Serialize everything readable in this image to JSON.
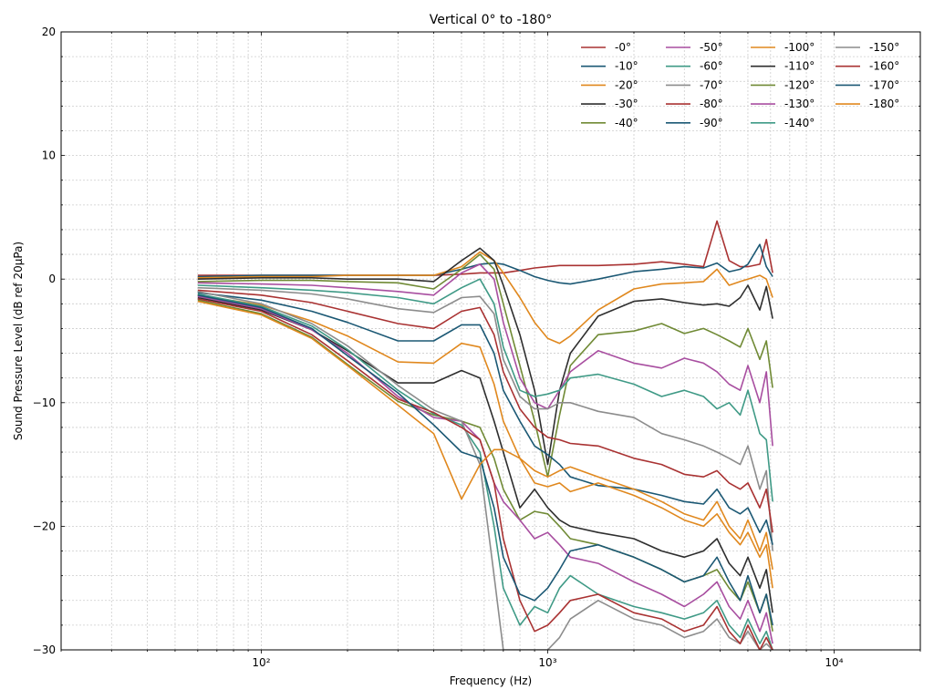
{
  "chart_data": {
    "type": "line",
    "title": "Vertical 0° to -180°",
    "xlabel": "Frequency (Hz)",
    "ylabel": "Sound Pressure Level (dB ref 20µPa)",
    "xscale": "log",
    "xlim": [
      20,
      20000
    ],
    "ylim": [
      -30,
      20
    ],
    "x_ticks": [
      {
        "value": 100,
        "label": "10²"
      },
      {
        "value": 1000,
        "label": "10³"
      },
      {
        "value": 10000,
        "label": "10⁴"
      }
    ],
    "y_ticks": [
      -30,
      -20,
      -10,
      0,
      10,
      20
    ],
    "grid": true,
    "legend_position": "top-right",
    "legend_columns": 4,
    "colors": [
      "#A93232",
      "#1B5874",
      "#E0881E",
      "#2E2E2E",
      "#708A35",
      "#A84EA0",
      "#3F9A86",
      "#8C8C8C"
    ],
    "x": [
      60,
      100,
      150,
      200,
      300,
      400,
      500,
      580,
      650,
      700,
      800,
      900,
      1000,
      1100,
      1200,
      1500,
      2000,
      2500,
      3000,
      3500,
      3900,
      4300,
      4700,
      5000,
      5500,
      5800,
      6100
    ],
    "series": [
      {
        "name": "-0°",
        "values": [
          0.3,
          0.3,
          0.3,
          0.3,
          0.3,
          0.3,
          0.4,
          0.5,
          0.5,
          0.5,
          0.7,
          0.9,
          1.0,
          1.1,
          1.1,
          1.1,
          1.2,
          1.4,
          1.2,
          1.0,
          4.7,
          1.5,
          1.0,
          1.0,
          1.2,
          3.2,
          0.5
        ]
      },
      {
        "name": "-10°",
        "values": [
          0.2,
          0.3,
          0.3,
          0.3,
          0.3,
          0.3,
          0.8,
          1.2,
          1.3,
          1.2,
          0.7,
          0.2,
          -0.1,
          -0.3,
          -0.4,
          0.0,
          0.6,
          0.8,
          1.0,
          0.9,
          1.3,
          0.6,
          0.8,
          1.2,
          2.8,
          1.0,
          0.2
        ]
      },
      {
        "name": "-20°",
        "values": [
          0.1,
          0.2,
          0.2,
          0.3,
          0.3,
          0.3,
          1.0,
          2.2,
          1.5,
          0.5,
          -1.5,
          -3.5,
          -4.8,
          -5.2,
          -4.6,
          -2.5,
          -0.8,
          -0.4,
          -0.3,
          -0.2,
          0.8,
          -0.5,
          -0.2,
          0.0,
          0.3,
          0.0,
          -1.5
        ]
      },
      {
        "name": "-30°",
        "values": [
          0.0,
          0.1,
          0.1,
          0.0,
          0.0,
          -0.2,
          1.5,
          2.5,
          1.5,
          -0.5,
          -4.5,
          -9.0,
          -15.0,
          -9.0,
          -6.0,
          -3.0,
          -1.8,
          -1.6,
          -1.9,
          -2.1,
          -2.0,
          -2.2,
          -1.5,
          -0.5,
          -2.5,
          -0.6,
          -3.2
        ]
      },
      {
        "name": "-40°",
        "values": [
          -0.2,
          -0.1,
          -0.1,
          -0.2,
          -0.3,
          -0.8,
          0.8,
          2.0,
          0.8,
          -2.0,
          -7.0,
          -11.5,
          -16.0,
          -11.0,
          -7.0,
          -4.5,
          -4.2,
          -3.6,
          -4.4,
          -4.0,
          -4.5,
          -5.0,
          -5.5,
          -4.0,
          -6.5,
          -5.0,
          -8.8
        ]
      },
      {
        "name": "-50°",
        "values": [
          -0.3,
          -0.4,
          -0.5,
          -0.7,
          -1.0,
          -1.3,
          0.5,
          1.2,
          0.0,
          -3.5,
          -8.0,
          -10.0,
          -10.5,
          -9.0,
          -7.5,
          -5.8,
          -6.8,
          -7.2,
          -6.4,
          -6.8,
          -7.5,
          -8.5,
          -9.0,
          -7.0,
          -10.0,
          -7.5,
          -13.5
        ]
      },
      {
        "name": "-60°",
        "values": [
          -0.5,
          -0.7,
          -0.9,
          -1.1,
          -1.5,
          -2.0,
          -0.7,
          0.0,
          -2.0,
          -5.5,
          -9.0,
          -9.5,
          -9.3,
          -9.0,
          -8.0,
          -7.7,
          -8.5,
          -9.5,
          -9.0,
          -9.5,
          -10.5,
          -10.0,
          -11.0,
          -9.0,
          -12.5,
          -13.0,
          -18.0
        ]
      },
      {
        "name": "-70°",
        "values": [
          -0.7,
          -0.9,
          -1.2,
          -1.6,
          -2.4,
          -2.7,
          -1.5,
          -1.4,
          -2.8,
          -6.5,
          -9.5,
          -10.5,
          -10.5,
          -10.0,
          -10.0,
          -10.7,
          -11.2,
          -12.5,
          -13.0,
          -13.5,
          -14.0,
          -14.5,
          -15.0,
          -13.5,
          -17.0,
          -15.5,
          -22.0
        ]
      },
      {
        "name": "-80°",
        "values": [
          -0.9,
          -1.3,
          -1.9,
          -2.6,
          -3.6,
          -4.0,
          -2.6,
          -2.3,
          -4.5,
          -7.5,
          -10.5,
          -12.0,
          -12.8,
          -13.0,
          -13.3,
          -13.5,
          -14.5,
          -15.0,
          -15.8,
          -16.0,
          -15.5,
          -16.5,
          -17.0,
          -16.5,
          -18.5,
          -17.0,
          -20.5
        ]
      },
      {
        "name": "-90°",
        "values": [
          -1.1,
          -1.7,
          -2.6,
          -3.5,
          -5.0,
          -5.0,
          -3.7,
          -3.7,
          -6.0,
          -9.0,
          -11.5,
          -13.5,
          -14.2,
          -15.0,
          -16.0,
          -16.7,
          -17.0,
          -17.5,
          -18.0,
          -18.2,
          -17.0,
          -18.5,
          -19.0,
          -18.5,
          -20.5,
          -19.5,
          -21.5
        ]
      },
      {
        "name": "-100°",
        "values": [
          -1.3,
          -2.1,
          -3.4,
          -4.6,
          -6.7,
          -6.8,
          -5.2,
          -5.5,
          -8.5,
          -11.5,
          -14.5,
          -16.5,
          -16.8,
          -16.5,
          -17.2,
          -16.5,
          -17.5,
          -18.5,
          -19.5,
          -20.0,
          -19.0,
          -20.5,
          -21.5,
          -20.5,
          -22.5,
          -21.5,
          -25.0
        ]
      },
      {
        "name": "-110°",
        "values": [
          -1.5,
          -2.5,
          -4.1,
          -5.8,
          -8.4,
          -8.4,
          -7.4,
          -8.0,
          -11.5,
          -14.0,
          -18.5,
          -17.0,
          -18.5,
          -19.5,
          -20.0,
          -20.5,
          -21.0,
          -22.0,
          -22.5,
          -22.0,
          -21.0,
          -23.0,
          -24.0,
          -22.5,
          -25.0,
          -23.5,
          -27.0
        ]
      },
      {
        "name": "-120°",
        "values": [
          -1.7,
          -2.8,
          -4.7,
          -6.9,
          -9.9,
          -11.0,
          -11.5,
          -12.0,
          -14.5,
          -17.0,
          -19.5,
          -18.8,
          -19.0,
          -20.0,
          -21.0,
          -21.5,
          -22.5,
          -23.5,
          -24.5,
          -24.0,
          -23.5,
          -25.0,
          -26.0,
          -24.5,
          -27.0,
          -25.5,
          -28.5
        ]
      },
      {
        "name": "-130°",
        "values": [
          -1.4,
          -2.4,
          -4.1,
          -6.0,
          -9.5,
          -11.2,
          -11.5,
          -13.0,
          -16.5,
          -18.0,
          -19.5,
          -21.0,
          -20.5,
          -21.5,
          -22.5,
          -23.0,
          -24.5,
          -25.5,
          -26.5,
          -25.5,
          -24.5,
          -26.5,
          -27.5,
          -26.0,
          -28.5,
          -27.0,
          -29.5
        ]
      },
      {
        "name": "-140°",
        "values": [
          -1.2,
          -2.2,
          -3.8,
          -5.7,
          -9.0,
          -10.9,
          -11.8,
          -14.0,
          -20.0,
          -25.0,
          -28.0,
          -26.5,
          -27.0,
          -25.0,
          -24.0,
          -25.5,
          -26.5,
          -27.0,
          -27.5,
          -27.0,
          -26.0,
          -28.0,
          -29.0,
          -27.5,
          -29.5,
          -28.5,
          -30.0
        ]
      },
      {
        "name": "-150°",
        "values": [
          -1.0,
          -2.0,
          -3.6,
          -5.4,
          -8.6,
          -10.6,
          -11.5,
          -15.0,
          -24.0,
          -30.0,
          -30.0,
          -30.0,
          -30.0,
          -29.0,
          -27.5,
          -26.0,
          -27.5,
          -28.0,
          -29.0,
          -28.5,
          -27.5,
          -29.0,
          -29.5,
          -28.5,
          -30.0,
          -29.5,
          -30.0
        ]
      },
      {
        "name": "-160°",
        "values": [
          -1.6,
          -2.6,
          -4.5,
          -6.6,
          -9.7,
          -10.8,
          -12.0,
          -13.0,
          -16.5,
          -21.0,
          -26.0,
          -28.5,
          -28.0,
          -27.0,
          -26.0,
          -25.5,
          -27.0,
          -27.5,
          -28.5,
          -28.0,
          -26.5,
          -28.5,
          -29.5,
          -28.0,
          -30.0,
          -29.0,
          -30.0
        ]
      },
      {
        "name": "-170°",
        "values": [
          -1.3,
          -2.3,
          -4.0,
          -6.2,
          -9.2,
          -11.8,
          -14.0,
          -14.5,
          -18.5,
          -22.5,
          -25.5,
          -26.0,
          -25.0,
          -23.5,
          -22.0,
          -21.5,
          -22.5,
          -23.5,
          -24.5,
          -24.0,
          -22.5,
          -24.5,
          -26.0,
          -24.0,
          -27.0,
          -25.5,
          -28.0
        ]
      },
      {
        "name": "-180°",
        "values": [
          -1.8,
          -2.9,
          -4.8,
          -7.0,
          -10.2,
          -12.5,
          -17.8,
          -15.0,
          -13.8,
          -13.8,
          -14.5,
          -15.5,
          -16.0,
          -15.5,
          -15.2,
          -16.0,
          -17.0,
          -18.0,
          -19.0,
          -19.5,
          -18.0,
          -20.0,
          -21.0,
          -19.5,
          -22.0,
          -20.5,
          -23.5
        ]
      }
    ]
  }
}
